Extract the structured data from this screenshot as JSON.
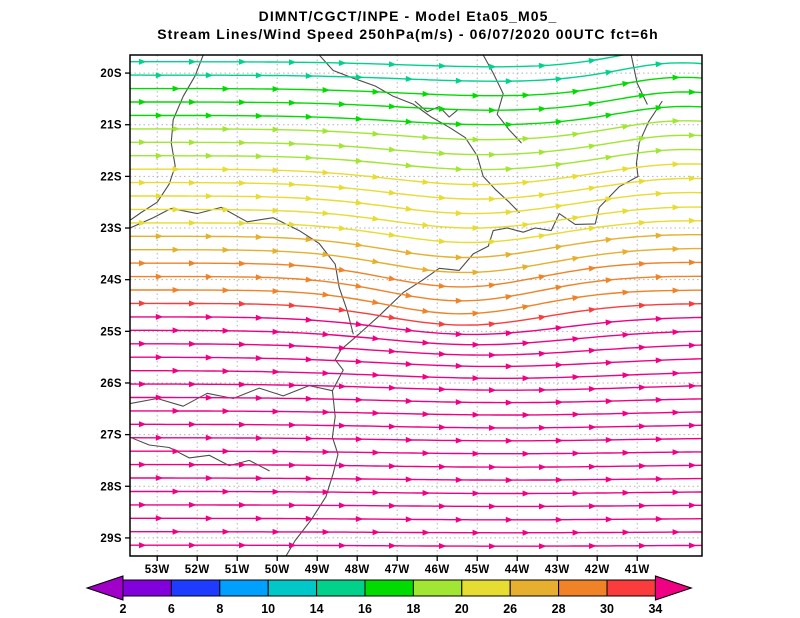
{
  "chart_data": {
    "type": "streamline-map",
    "title": "DIMNT/CGCT/INPE -  Model Eta05_M05_",
    "subtitle": "Stream Lines/Wind Speed 250hPa(m/s) -  06/07/2020 00UTC fct=6h",
    "field": "Stream Lines / Wind Speed",
    "level": "250hPa",
    "units": "m/s",
    "valid": "06/07/2020 00UTC fct=6h",
    "grid": true,
    "x_axis": {
      "ticks": [
        "53W",
        "52W",
        "51W",
        "50W",
        "49W",
        "48W",
        "47W",
        "46W",
        "45W",
        "44W",
        "43W",
        "42W",
        "41W"
      ],
      "lon_min": -53.68,
      "lon_max": -39.38
    },
    "y_axis": {
      "ticks": [
        "20S",
        "21S",
        "22S",
        "23S",
        "24S",
        "25S",
        "26S",
        "27S",
        "28S",
        "29S"
      ],
      "lat_min": -29.35,
      "lat_max": -19.65
    },
    "colorbar": {
      "boundary_labels": [
        "2",
        "6",
        "8",
        "10",
        "14",
        "16",
        "18",
        "20",
        "26",
        "28",
        "30",
        "34"
      ],
      "colors": [
        "#a000c8",
        "#8200dc",
        "#1e3cff",
        "#00a0ff",
        "#00c8c8",
        "#00d28c",
        "#00dc00",
        "#a0e632",
        "#e6dc32",
        "#e6af2d",
        "#f08228",
        "#fa3c3c",
        "#f00082"
      ]
    },
    "palette": {
      "aqua": "#00d28c",
      "green": "#00dc00",
      "ygreen": "#a0e632",
      "yellow": "#e6dc32",
      "dyellow": "#e6af2d",
      "orange": "#f08228",
      "red": "#fa3c3c",
      "magenta": "#f00082"
    },
    "speed_by_color": {
      "aqua": "14-16 m/s",
      "green": "16-18 m/s",
      "ygreen": "18-20 m/s",
      "yellow": "20-26 m/s",
      "dyellow": "26-28 m/s",
      "orange": "28-30 m/s",
      "red": "30-34 m/s",
      "magenta": ">34 m/s"
    },
    "streamlines": {
      "columns": [
        "lat",
        "color",
        "dip",
        "trough_lon",
        "sigma",
        "rise_east"
      ],
      "rows": [
        [
          -19.78,
          "aqua",
          0.1,
          -44.4,
          2.4,
          0.28
        ],
        [
          -20.04,
          "aqua",
          0.12,
          -44.4,
          2.4,
          0.26
        ],
        [
          -20.3,
          "green",
          0.14,
          -44.5,
          2.4,
          0.24
        ],
        [
          -20.56,
          "green",
          0.16,
          -44.5,
          2.4,
          0.22
        ],
        [
          -20.82,
          "green",
          0.18,
          -44.6,
          2.4,
          0.2
        ],
        [
          -21.08,
          "ygreen",
          0.21,
          -44.7,
          2.3,
          0.18
        ],
        [
          -21.34,
          "ygreen",
          0.24,
          -44.8,
          2.3,
          0.16
        ],
        [
          -21.6,
          "ygreen",
          0.27,
          -44.9,
          2.2,
          0.14
        ],
        [
          -21.86,
          "yellow",
          0.3,
          -45.0,
          2.2,
          0.12
        ],
        [
          -22.12,
          "yellow",
          0.32,
          -45.0,
          2.2,
          0.1
        ],
        [
          -22.38,
          "yellow",
          0.34,
          -45.1,
          2.1,
          0.08
        ],
        [
          -22.64,
          "yellow",
          0.36,
          -45.1,
          2.1,
          0.06
        ],
        [
          -22.9,
          "yellow",
          0.38,
          -45.2,
          2.0,
          0.05
        ],
        [
          -23.16,
          "dyellow",
          0.41,
          -45.3,
          2.0,
          0.04
        ],
        [
          -23.42,
          "dyellow",
          0.44,
          -45.3,
          2.0,
          0.03
        ],
        [
          -23.68,
          "orange",
          0.46,
          -45.4,
          1.9,
          0.02
        ],
        [
          -23.94,
          "orange",
          0.47,
          -45.4,
          1.9,
          0.01
        ],
        [
          -24.2,
          "orange",
          0.46,
          -45.4,
          1.9,
          0.0
        ],
        [
          -24.46,
          "red",
          0.42,
          -45.3,
          2.0,
          0.0
        ],
        [
          -24.72,
          "magenta",
          0.34,
          -45.1,
          2.2,
          0.0
        ],
        [
          -24.98,
          "magenta",
          0.28,
          -45.0,
          2.4,
          0.0
        ],
        [
          -25.24,
          "magenta",
          0.22,
          -44.8,
          2.6,
          0.0
        ],
        [
          -25.5,
          "magenta",
          0.18,
          -44.6,
          2.8,
          0.0
        ],
        [
          -25.76,
          "magenta",
          0.15,
          -44.4,
          3.0,
          0.0
        ],
        [
          -26.02,
          "magenta",
          0.12,
          -44.2,
          3.0,
          0.0
        ],
        [
          -26.28,
          "magenta",
          0.1,
          -44.2,
          3.0,
          0.0
        ],
        [
          -26.54,
          "magenta",
          0.08,
          -44.2,
          3.0,
          0.0
        ],
        [
          -26.8,
          "magenta",
          0.07,
          -44.2,
          3.0,
          0.0
        ],
        [
          -27.06,
          "magenta",
          0.06,
          -44.2,
          3.0,
          0.0
        ],
        [
          -27.32,
          "magenta",
          0.05,
          -44.2,
          3.0,
          0.0
        ],
        [
          -27.58,
          "magenta",
          0.05,
          -44.2,
          3.0,
          0.0
        ],
        [
          -27.84,
          "magenta",
          0.04,
          -44.2,
          3.0,
          0.0
        ],
        [
          -28.1,
          "magenta",
          0.04,
          -44.2,
          3.0,
          0.0
        ],
        [
          -28.36,
          "magenta",
          0.03,
          -44.2,
          3.0,
          0.0
        ],
        [
          -28.62,
          "magenta",
          0.03,
          -44.2,
          3.0,
          0.0
        ],
        [
          -28.88,
          "magenta",
          0.02,
          -44.2,
          3.0,
          0.0
        ],
        [
          -29.14,
          "magenta",
          0.02,
          -44.2,
          3.0,
          0.0
        ]
      ]
    },
    "map_outlines": {
      "coast": [
        [
          -40.38,
          -20.55
        ],
        [
          -40.72,
          -20.95
        ],
        [
          -40.95,
          -21.35
        ],
        [
          -41.02,
          -21.75
        ],
        [
          -40.98,
          -22.0
        ],
        [
          -41.45,
          -22.2
        ],
        [
          -41.95,
          -22.6
        ],
        [
          -42.05,
          -22.92
        ],
        [
          -42.55,
          -22.93
        ],
        [
          -42.95,
          -22.72
        ],
        [
          -43.15,
          -23.05
        ],
        [
          -43.55,
          -23.0
        ],
        [
          -43.85,
          -23.08
        ],
        [
          -44.25,
          -23.0
        ],
        [
          -44.6,
          -23.05
        ],
        [
          -44.72,
          -23.35
        ],
        [
          -45.1,
          -23.5
        ],
        [
          -45.45,
          -23.82
        ],
        [
          -45.95,
          -23.78
        ],
        [
          -46.35,
          -24.0
        ],
        [
          -46.85,
          -24.25
        ],
        [
          -47.45,
          -24.7
        ],
        [
          -47.95,
          -25.05
        ],
        [
          -48.4,
          -25.35
        ],
        [
          -48.55,
          -25.55
        ],
        [
          -48.35,
          -25.75
        ],
        [
          -48.62,
          -26.15
        ],
        [
          -48.55,
          -26.65
        ],
        [
          -48.62,
          -27.05
        ],
        [
          -48.48,
          -27.38
        ],
        [
          -48.6,
          -27.75
        ],
        [
          -48.78,
          -28.2
        ],
        [
          -49.15,
          -28.65
        ],
        [
          -49.55,
          -29.05
        ],
        [
          -49.78,
          -29.35
        ]
      ],
      "rio_parana": [
        [
          -51.85,
          -19.65
        ],
        [
          -52.05,
          -20.05
        ],
        [
          -52.35,
          -20.45
        ],
        [
          -52.6,
          -20.9
        ],
        [
          -52.65,
          -21.35
        ],
        [
          -52.55,
          -21.8
        ],
        [
          -52.7,
          -22.15
        ],
        [
          -53.0,
          -22.5
        ],
        [
          -53.4,
          -22.7
        ],
        [
          -53.68,
          -22.85
        ]
      ],
      "paranapanema_border": [
        [
          -53.68,
          -23.0
        ],
        [
          -53.1,
          -22.8
        ],
        [
          -52.65,
          -22.62
        ],
        [
          -52.0,
          -22.72
        ],
        [
          -51.4,
          -22.6
        ],
        [
          -50.75,
          -22.88
        ],
        [
          -50.1,
          -22.8
        ],
        [
          -49.45,
          -23.05
        ],
        [
          -48.95,
          -23.3
        ],
        [
          -48.55,
          -23.7
        ],
        [
          -48.45,
          -24.15
        ],
        [
          -48.25,
          -24.6
        ],
        [
          -48.1,
          -25.05
        ]
      ],
      "mg_sp_border": [
        [
          -48.95,
          -19.65
        ],
        [
          -48.6,
          -19.95
        ],
        [
          -48.1,
          -20.1
        ],
        [
          -47.55,
          -20.25
        ],
        [
          -47.1,
          -20.45
        ],
        [
          -46.6,
          -20.6
        ],
        [
          -46.15,
          -20.85
        ],
        [
          -45.7,
          -21.05
        ],
        [
          -45.3,
          -21.25
        ],
        [
          -45.0,
          -21.6
        ],
        [
          -44.85,
          -22.0
        ],
        [
          -44.55,
          -22.25
        ],
        [
          -44.2,
          -22.5
        ],
        [
          -43.95,
          -22.7
        ]
      ],
      "furnas_reservoir": [
        [
          -46.55,
          -20.55
        ],
        [
          -46.25,
          -20.75
        ],
        [
          -45.95,
          -20.65
        ],
        [
          -45.7,
          -20.85
        ],
        [
          -45.5,
          -20.72
        ]
      ],
      "mg_rivers": [
        [
          -44.85,
          -19.65
        ],
        [
          -44.6,
          -20.0
        ],
        [
          -44.35,
          -20.4
        ],
        [
          -44.5,
          -20.8
        ],
        [
          -44.2,
          -21.1
        ],
        [
          -43.9,
          -21.35
        ]
      ],
      "es_river": [
        [
          -41.15,
          -19.65
        ],
        [
          -41.0,
          -20.2
        ],
        [
          -40.75,
          -20.6
        ]
      ],
      "pr_sc_border": [
        [
          -48.62,
          -26.15
        ],
        [
          -49.2,
          -26.05
        ],
        [
          -49.85,
          -26.25
        ],
        [
          -50.45,
          -26.1
        ],
        [
          -51.1,
          -26.3
        ],
        [
          -51.75,
          -26.2
        ],
        [
          -52.35,
          -26.45
        ],
        [
          -53.0,
          -26.3
        ],
        [
          -53.68,
          -26.4
        ]
      ],
      "rio_uruguai": [
        [
          -53.68,
          -27.05
        ],
        [
          -53.2,
          -27.2
        ],
        [
          -52.7,
          -27.25
        ],
        [
          -52.2,
          -27.45
        ],
        [
          -51.7,
          -27.4
        ],
        [
          -51.2,
          -27.6
        ],
        [
          -50.7,
          -27.5
        ],
        [
          -50.2,
          -27.7
        ]
      ]
    }
  }
}
